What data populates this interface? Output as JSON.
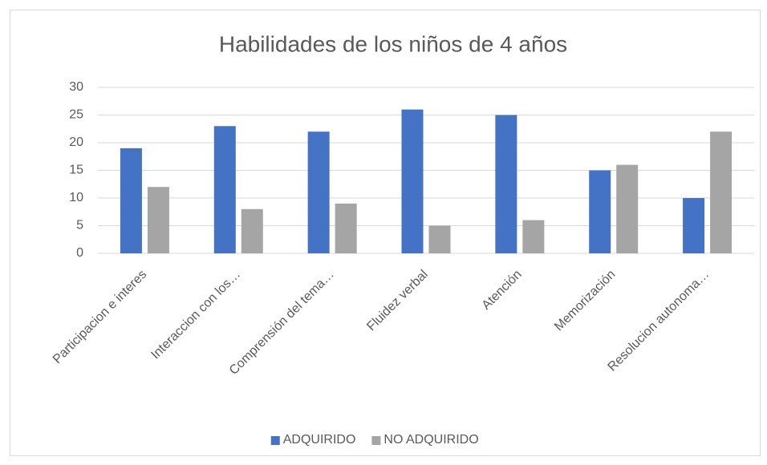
{
  "chart_data": {
    "type": "bar",
    "title": "Habilidades de los niños de 4 años",
    "categories": [
      "Participacion e interes",
      "Interaccion con los…",
      "Comprensión del tema…",
      "Fluidez verbal",
      "Atención",
      "Memorización",
      "Resolucion autonoma…"
    ],
    "series": [
      {
        "name": "ADQUIRIDO",
        "color": "#4472c4",
        "values": [
          19,
          23,
          22,
          26,
          25,
          15,
          10
        ]
      },
      {
        "name": "NO ADQUIRIDO",
        "color": "#a5a5a5",
        "values": [
          12,
          8,
          9,
          5,
          6,
          16,
          22
        ]
      }
    ],
    "ylim": [
      0,
      30
    ],
    "yticks": [
      0,
      5,
      10,
      15,
      20,
      25,
      30
    ],
    "grid": true,
    "legend": "bottom"
  }
}
